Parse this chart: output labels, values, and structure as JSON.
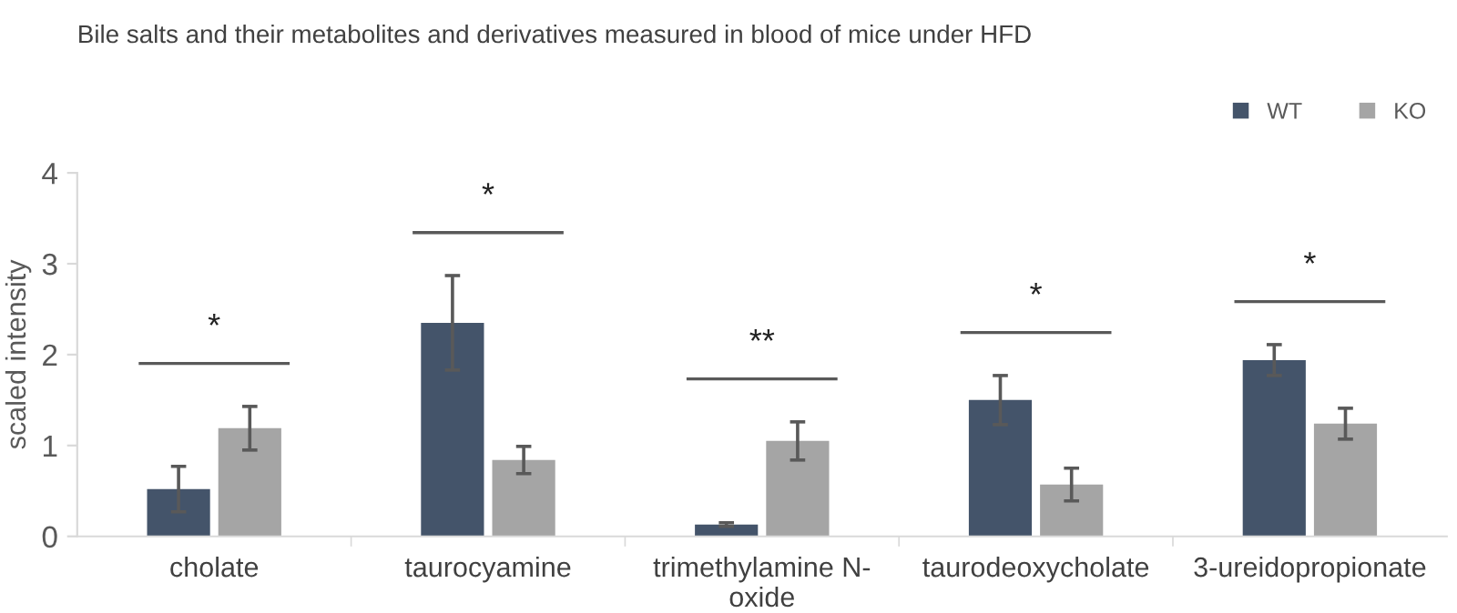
{
  "chart_data": {
    "type": "bar",
    "title": "Bile salts and their metabolites and derivatives measured in blood of mice under HFD",
    "ylabel": "scaled intensity",
    "categories": [
      "cholate",
      "taurocyamine",
      "trimethylamine N-\noxide",
      "taurodeoxycholate",
      "3-ureidopropionate"
    ],
    "series": [
      {
        "name": "WT",
        "color": "#44546a",
        "values": [
          0.52,
          2.35,
          0.13,
          1.5,
          1.94
        ],
        "errors": [
          0.25,
          0.52,
          0.02,
          0.27,
          0.17
        ]
      },
      {
        "name": "KO",
        "color": "#a5a5a5",
        "values": [
          1.19,
          0.84,
          1.05,
          0.57,
          1.24
        ],
        "errors": [
          0.24,
          0.15,
          0.21,
          0.18,
          0.17
        ]
      }
    ],
    "annotations": [
      "*",
      "*",
      "**",
      "*",
      "*"
    ],
    "ylim": [
      0,
      4
    ],
    "yticks": [
      0,
      1,
      2,
      3,
      4
    ],
    "grid": false,
    "legend": "top right"
  }
}
